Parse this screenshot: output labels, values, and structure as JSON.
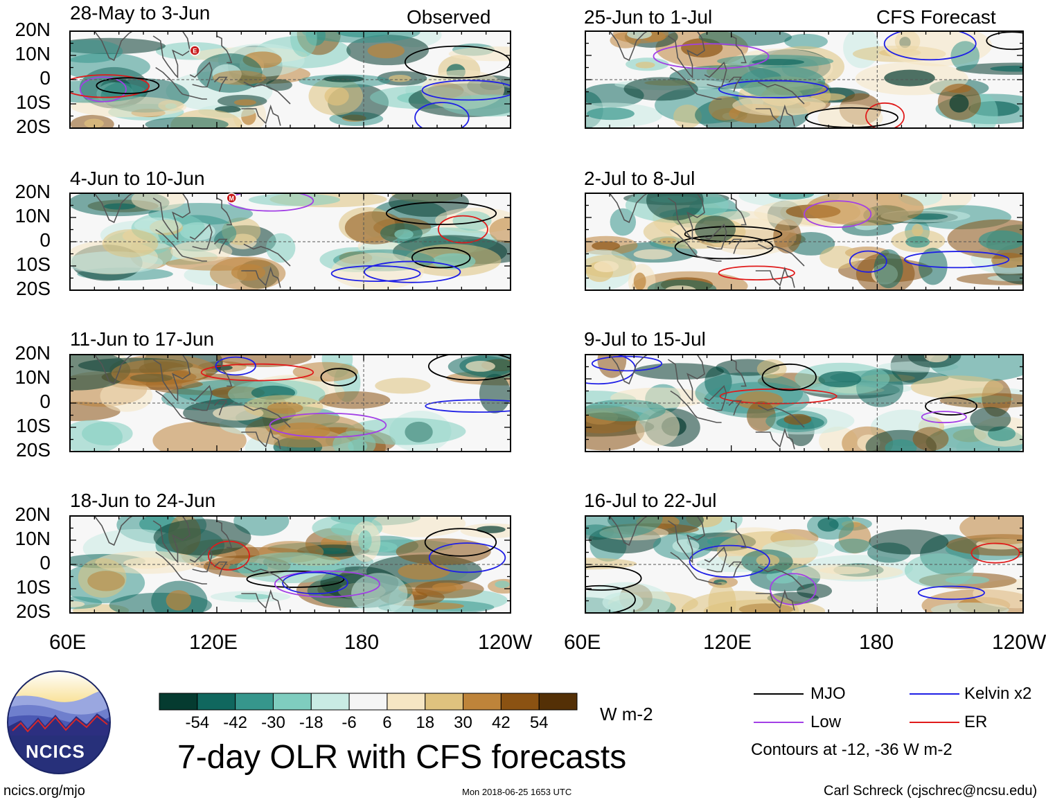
{
  "chart_data": {
    "type": "heatmap",
    "title": "7-day OLR with CFS forecasts",
    "column_headers": [
      "Observed",
      "CFS Forecast"
    ],
    "y_ticks": [
      "20N",
      "10N",
      "0",
      "10S",
      "20S"
    ],
    "x_ticks": [
      "60E",
      "120E",
      "180",
      "120W"
    ],
    "ylim": [
      -20,
      20
    ],
    "xlim": [
      60,
      240
    ],
    "panels": {
      "observed": [
        {
          "title": "28-May to 3-Jun",
          "markers": [
            {
              "label": "E",
              "lon": 111,
              "lat": 12
            }
          ]
        },
        {
          "title": "4-Jun to 10-Jun",
          "markers": [
            {
              "label": "M",
              "lon": 126,
              "lat": 18
            }
          ]
        },
        {
          "title": "11-Jun to 17-Jun",
          "markers": []
        },
        {
          "title": "18-Jun to 24-Jun",
          "markers": []
        }
      ],
      "forecast": [
        {
          "title": "25-Jun to 1-Jul"
        },
        {
          "title": "2-Jul to 8-Jul"
        },
        {
          "title": "9-Jul to 15-Jul"
        },
        {
          "title": "16-Jul to 22-Jul"
        }
      ]
    },
    "colorbar": {
      "ticks": [
        "-54",
        "-42",
        "-30",
        "-18",
        "-6",
        "6",
        "18",
        "30",
        "42",
        "54"
      ],
      "units": "W m-2",
      "colors": [
        "#053b30",
        "#10675e",
        "#36968c",
        "#7fcdbf",
        "#c9ebe4",
        "#f5f5f5",
        "#f6e6c3",
        "#dfc27e",
        "#be843a",
        "#8b5212",
        "#543006"
      ]
    },
    "legend": {
      "entries": [
        {
          "name": "MJO",
          "color": "#000000"
        },
        {
          "name": "Kelvin x2",
          "color": "#1f1fe6"
        },
        {
          "name": "Low",
          "color": "#a23fe6"
        },
        {
          "name": "ER",
          "color": "#e01a1a"
        }
      ],
      "contour_note": "Contours at -12, -36 W m-2"
    }
  },
  "footer": {
    "logo_text": "NCICS",
    "url": "ncics.org/mjo",
    "timestamp": "Mon 2018-06-25 1653 UTC",
    "author": "Carl Schreck (cjschrec@ncsu.edu)"
  }
}
